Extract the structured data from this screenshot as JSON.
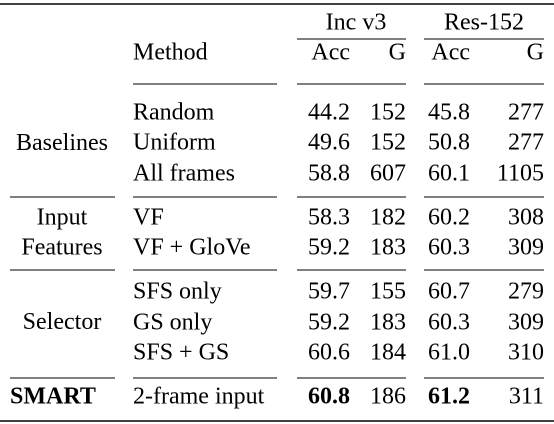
{
  "header": {
    "groups": [
      "Inc v3",
      "Res-152"
    ],
    "columns": [
      "Method",
      "Acc",
      "G",
      "Acc",
      "G"
    ]
  },
  "sections": [
    {
      "label": [
        "Baselines"
      ],
      "rows": [
        [
          "Random",
          "44.2",
          "152",
          "45.8",
          "277"
        ],
        [
          "Uniform",
          "49.6",
          "152",
          "50.8",
          "277"
        ],
        [
          "All frames",
          "58.8",
          "607",
          "60.1",
          "1105"
        ]
      ]
    },
    {
      "label": [
        "Input",
        "Features"
      ],
      "rows": [
        [
          "VF",
          "58.3",
          "182",
          "60.2",
          "308"
        ],
        [
          "VF + GloVe",
          "59.2",
          "183",
          "60.3",
          "309"
        ]
      ]
    },
    {
      "label": [
        "Selector"
      ],
      "rows": [
        [
          "SFS only",
          "59.7",
          "155",
          "60.7",
          "279"
        ],
        [
          "GS only",
          "59.2",
          "183",
          "60.3",
          "309"
        ],
        [
          "SFS + GS",
          "60.6",
          "184",
          "61.0",
          "310"
        ]
      ]
    },
    {
      "label": [
        "SMART"
      ],
      "rows": [
        [
          "2-frame input",
          "60.8",
          "186",
          "61.2",
          "311"
        ]
      ]
    }
  ]
}
